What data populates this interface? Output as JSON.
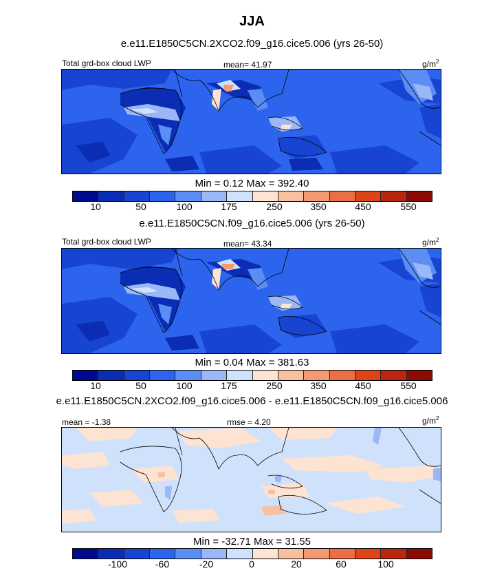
{
  "figure": {
    "season": "JJA"
  },
  "panels": [
    {
      "title": "e.e11.E1850C5CN.2XCO2.f09_g16.cice5.006 (yrs 26-50)",
      "left_label": "Total grd-box cloud LWP",
      "center_label": "mean=  41.97",
      "unit": "g/m",
      "unit_sup": "2",
      "minmax": "Min =   0.12 Max = 392.40",
      "colorbar_ticks": [
        "10",
        "50",
        "100",
        "175",
        "250",
        "350",
        "450",
        "550"
      ]
    },
    {
      "title": "e.e11.E1850C5CN.f09_g16.cice5.006 (yrs 26-50)",
      "left_label": "Total grd-box cloud LWP",
      "center_label": "mean=  43.34",
      "unit": "g/m",
      "unit_sup": "2",
      "minmax": "Min =   0.04 Max = 381.63",
      "colorbar_ticks": [
        "10",
        "50",
        "100",
        "175",
        "250",
        "350",
        "450",
        "550"
      ]
    },
    {
      "title": "e.e11.E1850C5CN.2XCO2.f09_g16.cice5.006 - e.e11.E1850C5CN.f09_g16.cice5.006",
      "left_label": "mean =  -1.38",
      "center_label": "rmse =   4.20",
      "unit": "g/m",
      "unit_sup": "2",
      "minmax": "Min = -32.71 Max =  31.55",
      "colorbar_ticks": [
        "-100",
        "-60",
        "-20",
        "0",
        "20",
        "60",
        "100"
      ]
    }
  ],
  "colorbar_colors": [
    "#000a8c",
    "#0a2db3",
    "#1745d1",
    "#2d64ee",
    "#5a8ef5",
    "#9ab8f7",
    "#d0e2fb",
    "#fde3d2",
    "#f7c0a0",
    "#f49a72",
    "#ec6e44",
    "#dd4418",
    "#b8260f",
    "#8c0b05"
  ]
}
